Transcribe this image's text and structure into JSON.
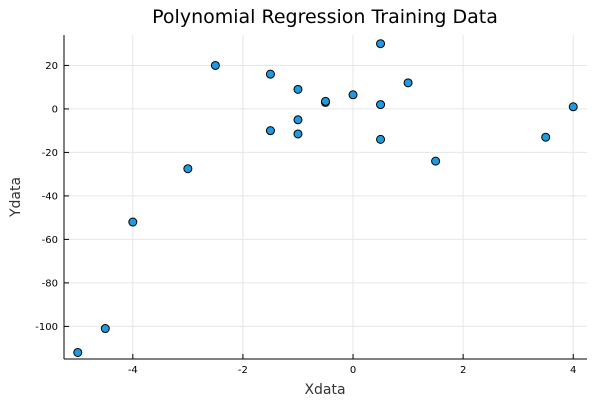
{
  "chart_data": {
    "type": "scatter",
    "title": "Polynomial Regression Training Data",
    "xlabel": "Xdata",
    "ylabel": "Ydata",
    "xlim": [
      -5.25,
      4.25
    ],
    "ylim": [
      -115,
      34
    ],
    "xticks": [
      -4,
      -2,
      0,
      2,
      4
    ],
    "yticks": [
      -100,
      -80,
      -60,
      -40,
      -20,
      0,
      20
    ],
    "grid": true,
    "legend": "none",
    "marker_color": "#1f9ae0",
    "points": [
      {
        "x": -5.0,
        "y": -112
      },
      {
        "x": -4.5,
        "y": -101
      },
      {
        "x": -4.0,
        "y": -52
      },
      {
        "x": -3.0,
        "y": -27.5
      },
      {
        "x": -2.5,
        "y": 20
      },
      {
        "x": -1.5,
        "y": 16
      },
      {
        "x": -1.5,
        "y": -10
      },
      {
        "x": -1.0,
        "y": 9
      },
      {
        "x": -1.0,
        "y": -5
      },
      {
        "x": -1.0,
        "y": -11.5
      },
      {
        "x": -0.5,
        "y": 3
      },
      {
        "x": -0.5,
        "y": 3.5
      },
      {
        "x": 0.0,
        "y": 6.5
      },
      {
        "x": 0.5,
        "y": 30
      },
      {
        "x": 0.5,
        "y": 2
      },
      {
        "x": 0.5,
        "y": -14
      },
      {
        "x": 1.0,
        "y": 12
      },
      {
        "x": 1.5,
        "y": -24
      },
      {
        "x": 3.5,
        "y": -13
      },
      {
        "x": 4.0,
        "y": 1
      }
    ]
  }
}
